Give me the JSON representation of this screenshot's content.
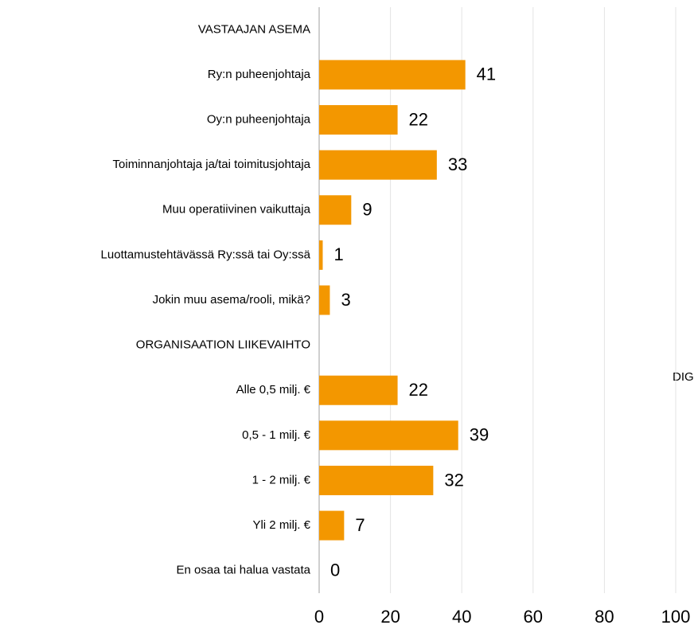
{
  "chart_data": {
    "type": "bar",
    "orientation": "horizontal",
    "categories": [
      "VASTAAJAN ASEMA",
      "Ry:n puheenjohtaja",
      "Oy:n puheenjohtaja",
      "Toiminnanjohtaja ja/tai toimitusjohtaja",
      "Muu operatiivinen vaikuttaja",
      "Luottamustehtävässä Ry:ssä tai Oy:ssä",
      "Jokin muu asema/rooli, mikä?",
      "ORGANISAATION LIIKEVAIHTO",
      "Alle 0,5 milj. €",
      "0,5 - 1 milj. €",
      "1 - 2 milj. €",
      "Yli 2 milj. €",
      "En osaa tai halua vastata"
    ],
    "values": [
      null,
      41,
      22,
      33,
      9,
      1,
      3,
      null,
      22,
      39,
      32,
      7,
      0
    ],
    "color": "#f39700",
    "xlim": [
      0,
      100
    ],
    "xticks": [
      0,
      20,
      40,
      60,
      80,
      100
    ],
    "grid": true,
    "annotation": "DIG"
  }
}
